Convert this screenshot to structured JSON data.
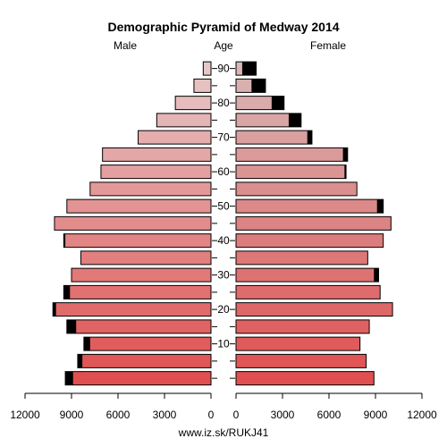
{
  "chart_data": {
    "type": "bar",
    "title": "Demographic Pyramid of Medway 2014",
    "left_label": "Male",
    "center_label": "Age",
    "right_label": "Female",
    "source": "www.iz.sk/RUKJ41",
    "age_groups": [
      "0-4",
      "5-9",
      "10-14",
      "15-19",
      "20-24",
      "25-29",
      "30-34",
      "35-39",
      "40-44",
      "45-49",
      "50-54",
      "55-59",
      "60-64",
      "65-69",
      "70-74",
      "75-79",
      "80-84",
      "85-89",
      "90+"
    ],
    "age_tick_labels": [
      "10",
      "20",
      "30",
      "40",
      "50",
      "60",
      "70",
      "80",
      "90"
    ],
    "x_ticks_male": [
      "12000",
      "9000",
      "6000",
      "3000",
      "0"
    ],
    "x_ticks_female": [
      "0",
      "3000",
      "6000",
      "9000",
      "12000"
    ],
    "xlim": [
      0,
      12000
    ],
    "series": [
      {
        "name": "Male",
        "values": [
          9400,
          8600,
          8200,
          9300,
          10200,
          9500,
          9000,
          8400,
          9500,
          10100,
          9300,
          7800,
          7100,
          7000,
          4700,
          3500,
          2300,
          1100,
          500
        ],
        "excess": [
          500,
          300,
          400,
          600,
          200,
          400,
          0,
          0,
          100,
          0,
          0,
          0,
          0,
          0,
          0,
          0,
          0,
          0,
          0
        ]
      },
      {
        "name": "Female",
        "values": [
          8900,
          8400,
          8000,
          8600,
          10100,
          9300,
          9200,
          8500,
          9500,
          10000,
          9500,
          7800,
          7100,
          7200,
          4900,
          4200,
          3100,
          1900,
          1300
        ],
        "excess": [
          0,
          0,
          0,
          0,
          0,
          0,
          300,
          0,
          0,
          0,
          400,
          0,
          100,
          300,
          300,
          800,
          800,
          900,
          900
        ]
      }
    ],
    "colors": {
      "young": "#e05050",
      "old": "#e6c8c8",
      "excess": "#000000",
      "female_dotted": "#d06a6a"
    }
  }
}
